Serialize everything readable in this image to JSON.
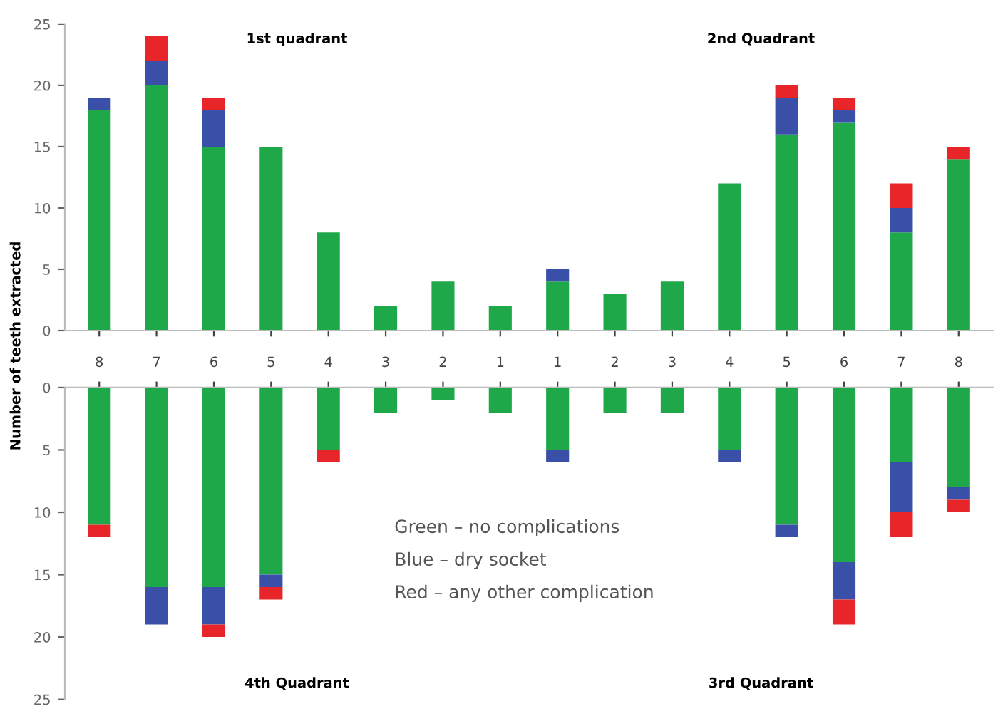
{
  "chart_data": [
    {
      "type": "bar",
      "stacked": true,
      "ylabel": "Number of teeth extracted",
      "tick_labels": "y",
      "categories": [
        "8",
        "7",
        "6",
        "5",
        "4",
        "3",
        "2",
        "1",
        "1",
        "2",
        "3",
        "4",
        "5",
        "6",
        "7",
        "8"
      ],
      "ylim": [
        0,
        25
      ],
      "yticks": [
        0,
        5,
        10,
        15,
        20,
        25
      ],
      "grid": false,
      "legend": false,
      "annotations": [
        "1st quadrant",
        "2nd Quadrant"
      ],
      "series": [
        {
          "color": "#1fa84a",
          "values": [
            18,
            20,
            15,
            15,
            8,
            2,
            4,
            2,
            4,
            3,
            4,
            12,
            16,
            17,
            8,
            14
          ]
        },
        {
          "color": "#3a4fa8",
          "values": [
            1,
            2,
            3,
            0,
            0,
            0,
            0,
            0,
            1,
            0,
            0,
            0,
            3,
            1,
            2,
            0
          ]
        },
        {
          "color": "#e8262a",
          "values": [
            0,
            2,
            1,
            0,
            0,
            0,
            0,
            0,
            0,
            0,
            0,
            0,
            1,
            1,
            2,
            1
          ]
        }
      ]
    },
    {
      "type": "bar",
      "stacked": true,
      "categories": [
        "8",
        "7",
        "6",
        "5",
        "4",
        "3",
        "2",
        "1",
        "1",
        "2",
        "3",
        "4",
        "5",
        "6",
        "7",
        "8"
      ],
      "ylim": [
        25,
        0
      ],
      "yticks": [
        0,
        5,
        10,
        15,
        20,
        25
      ],
      "grid": false,
      "legend": false,
      "annotations": [
        "Green – no complications",
        "Blue – dry socket",
        "Red – any other complication",
        "4th Quadrant",
        "3rd Quadrant"
      ],
      "series": [
        {
          "color": "#1fa84a",
          "values": [
            11,
            16,
            16,
            15,
            5,
            2,
            1,
            2,
            5,
            2,
            2,
            5,
            11,
            14,
            6,
            8
          ]
        },
        {
          "color": "#3a4fa8",
          "values": [
            0,
            3,
            3,
            1,
            0,
            0,
            0,
            0,
            1,
            0,
            0,
            1,
            1,
            3,
            4,
            1
          ]
        },
        {
          "color": "#e8262a",
          "values": [
            1,
            0,
            1,
            1,
            1,
            0,
            0,
            0,
            0,
            0,
            0,
            0,
            0,
            2,
            2,
            1
          ]
        }
      ]
    }
  ]
}
